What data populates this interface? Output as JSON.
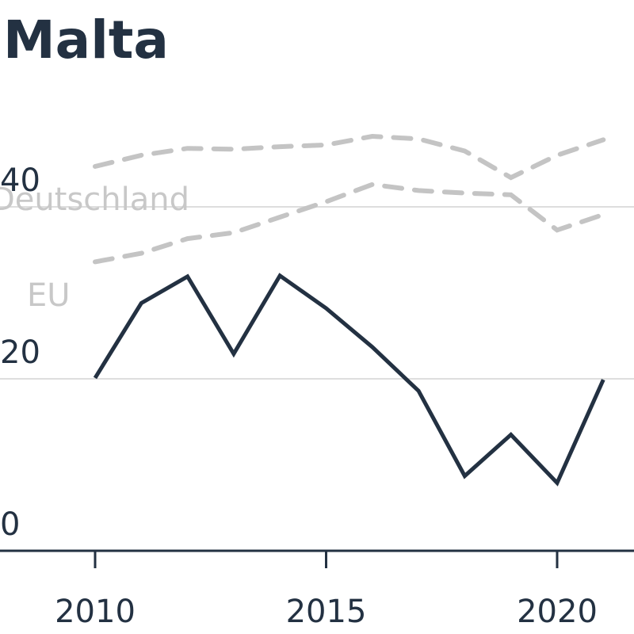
{
  "chart_data": {
    "type": "line",
    "title": "Malta",
    "xlabel": "",
    "ylabel": "",
    "xlim": [
      2008,
      2022
    ],
    "ylim": [
      0,
      46
    ],
    "x_ticks": [
      2010,
      2015,
      2020
    ],
    "y_ticks": [
      0,
      20,
      40
    ],
    "grid": "horizontal",
    "series": [
      {
        "name": "",
        "style": "solid",
        "color": "#233142",
        "x": [
          2010,
          2011,
          2012,
          2013,
          2014,
          2015,
          2016,
          2017,
          2018,
          2019,
          2020,
          2021
        ],
        "values": [
          20.1,
          28.8,
          31.9,
          22.9,
          32.0,
          28.2,
          23.7,
          18.6,
          8.7,
          13.5,
          7.9,
          19.9
        ]
      },
      {
        "name": "Deutschland",
        "style": "dashed",
        "color": "#c4c4c4",
        "x": [
          2010,
          2011,
          2012,
          2013,
          2014,
          2015,
          2016,
          2017,
          2018,
          2019,
          2020,
          2021
        ],
        "values": [
          44.7,
          46.0,
          46.8,
          46.7,
          47.0,
          47.2,
          48.2,
          47.9,
          46.5,
          43.4,
          46.0,
          47.8
        ]
      },
      {
        "name": "EU",
        "style": "dashed",
        "color": "#c4c4c4",
        "x": [
          2010,
          2011,
          2012,
          2013,
          2014,
          2015,
          2016,
          2017,
          2018,
          2019,
          2020,
          2021
        ],
        "values": [
          33.6,
          34.6,
          36.3,
          37.0,
          38.8,
          40.6,
          42.6,
          41.9,
          41.6,
          41.4,
          37.3,
          39.1
        ]
      }
    ]
  }
}
